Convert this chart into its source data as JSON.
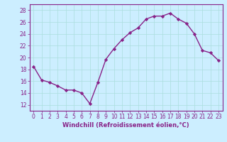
{
  "x": [
    0,
    1,
    2,
    3,
    4,
    5,
    6,
    7,
    8,
    9,
    10,
    11,
    12,
    13,
    14,
    15,
    16,
    17,
    18,
    19,
    20,
    21,
    22,
    23
  ],
  "y": [
    18.5,
    16.2,
    15.8,
    15.2,
    14.5,
    14.5,
    14.0,
    12.2,
    15.8,
    19.7,
    21.5,
    23.0,
    24.2,
    25.0,
    26.5,
    27.0,
    27.0,
    27.5,
    26.5,
    25.8,
    24.0,
    21.2,
    20.8,
    19.5
  ],
  "line_color": "#882288",
  "marker": "D",
  "marker_size": 2.2,
  "bg_color": "#cceeff",
  "grid_color": "#aadddd",
  "xlabel": "Windchill (Refroidissement éolien,°C)",
  "xlabel_color": "#882288",
  "tick_color": "#882288",
  "spine_color": "#882288",
  "ylim": [
    11,
    29
  ],
  "xlim": [
    -0.5,
    23.5
  ],
  "yticks": [
    12,
    14,
    16,
    18,
    20,
    22,
    24,
    26,
    28
  ],
  "xticks": [
    0,
    1,
    2,
    3,
    4,
    5,
    6,
    7,
    8,
    9,
    10,
    11,
    12,
    13,
    14,
    15,
    16,
    17,
    18,
    19,
    20,
    21,
    22,
    23
  ],
  "tick_fontsize": 5.5,
  "xlabel_fontsize": 6.0,
  "linewidth": 1.0,
  "grid_linewidth": 0.5
}
